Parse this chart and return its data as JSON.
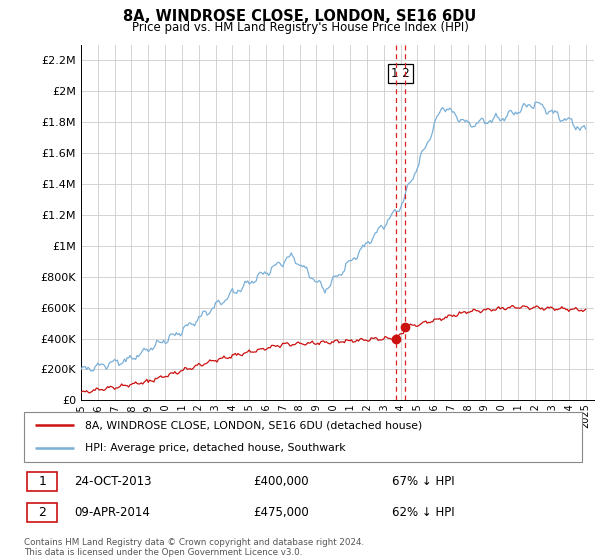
{
  "title": "8A, WINDROSE CLOSE, LONDON, SE16 6DU",
  "subtitle": "Price paid vs. HM Land Registry's House Price Index (HPI)",
  "hpi_label": "HPI: Average price, detached house, Southwark",
  "property_label": "8A, WINDROSE CLOSE, LONDON, SE16 6DU (detached house)",
  "purchase1_date": "24-OCT-2013",
  "purchase1_price": 400000,
  "purchase1_pct": "67% ↓ HPI",
  "purchase2_date": "09-APR-2014",
  "purchase2_price": 475000,
  "purchase2_pct": "62% ↓ HPI",
  "hpi_color": "#7ab0d8",
  "property_color": "#cc1111",
  "vline_color": "#dd2222",
  "background_color": "#ffffff",
  "grid_color": "#cccccc",
  "ylim": [
    0,
    2300000
  ],
  "yticks": [
    0,
    200000,
    400000,
    600000,
    800000,
    1000000,
    1200000,
    1400000,
    1600000,
    1800000,
    2000000,
    2200000
  ],
  "ytick_labels": [
    "£0",
    "£200K",
    "£400K",
    "£600K",
    "£800K",
    "£1M",
    "£1.2M",
    "£1.4M",
    "£1.6M",
    "£1.8M",
    "£2M",
    "£2.2M"
  ],
  "x_start_year": 1995,
  "x_end_year": 2025,
  "footer": "Contains HM Land Registry data © Crown copyright and database right 2024.\nThis data is licensed under the Open Government Licence v3.0."
}
